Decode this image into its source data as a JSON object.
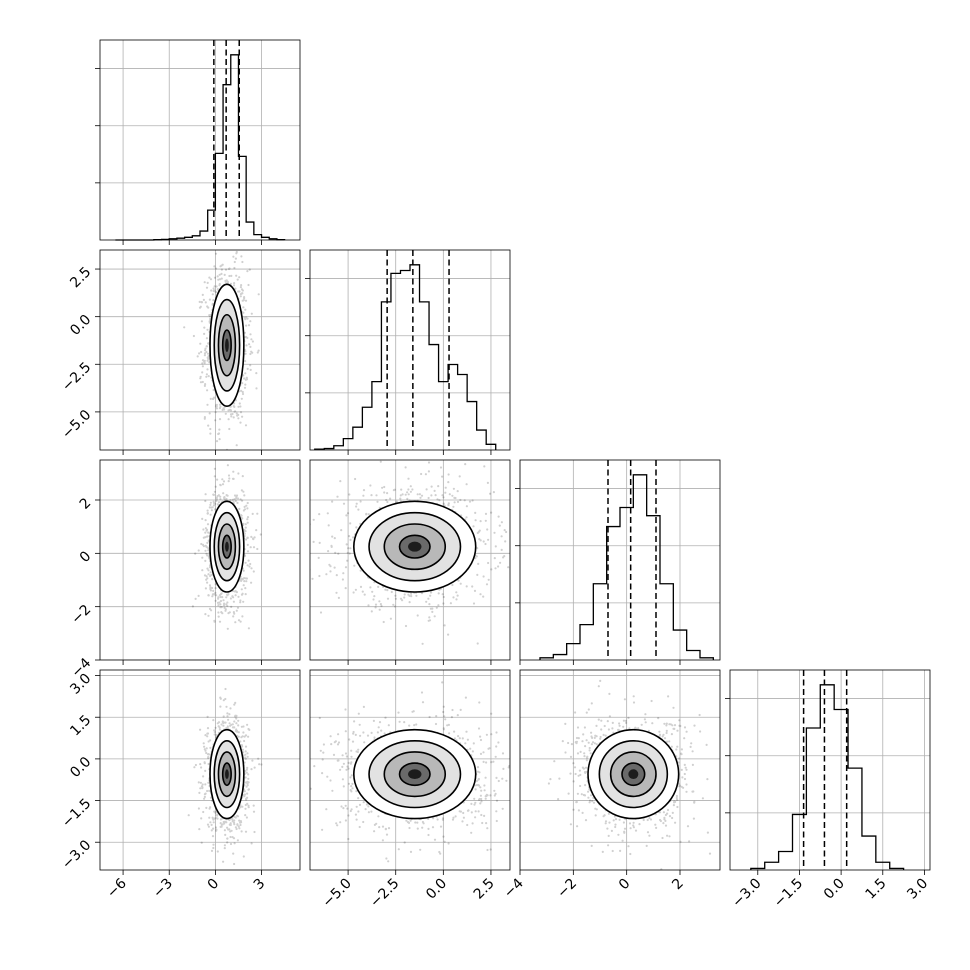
{
  "chart_data": {
    "type": "corner",
    "n_params": 4,
    "quantiles": [
      0.16,
      0.5,
      0.84
    ],
    "grid": true,
    "params": [
      {
        "index": 0,
        "range": [
          -7.5,
          5.5
        ],
        "ticks": [
          -6,
          -3,
          0,
          3
        ],
        "tick_labels": [
          "−6",
          "−3",
          "0",
          "3"
        ],
        "mean": 0.75,
        "sd": 0.65,
        "quantile_values": [
          -0.1,
          0.7,
          1.55
        ],
        "hist": {
          "edges": [
            -6.5,
            -6.0,
            -5.5,
            -5.0,
            -4.5,
            -4.0,
            -3.5,
            -3.0,
            -2.5,
            -2.0,
            -1.5,
            -1.0,
            -0.5,
            0.0,
            0.5,
            1.0,
            1.5,
            2.0,
            2.5,
            3.0,
            3.5,
            4.0,
            4.5
          ],
          "counts": [
            0,
            0,
            0,
            0,
            0,
            1,
            2,
            4,
            6,
            9,
            14,
            30,
            100,
            290,
            520,
            620,
            280,
            60,
            18,
            9,
            4,
            1
          ]
        }
      },
      {
        "index": 1,
        "range": [
          -7.0,
          3.5
        ],
        "ticks": [
          -5.0,
          -2.5,
          0.0,
          2.5
        ],
        "tick_labels": [
          "−5.0",
          "−2.5",
          "0.0",
          "2.5"
        ],
        "mean": -1.5,
        "sd": 1.6,
        "quantile_values": [
          -2.95,
          -1.6,
          0.3
        ],
        "hist": {
          "edges": [
            -6.75,
            -6.25,
            -5.75,
            -5.25,
            -4.75,
            -4.25,
            -3.75,
            -3.25,
            -2.75,
            -2.25,
            -1.75,
            -1.25,
            -0.75,
            -0.25,
            0.25,
            0.75,
            1.25,
            1.75,
            2.25,
            2.75
          ],
          "counts": [
            3,
            5,
            15,
            40,
            80,
            150,
            240,
            520,
            620,
            630,
            650,
            520,
            370,
            240,
            300,
            265,
            170,
            70,
            20
          ]
        }
      },
      {
        "index": 2,
        "range": [
          -4.0,
          3.5
        ],
        "ticks": [
          -4,
          -2,
          0,
          2
        ],
        "tick_labels": [
          "−4",
          "−2",
          "0",
          "2"
        ],
        "mean": 0.25,
        "sd": 0.85,
        "quantile_values": [
          -0.7,
          0.15,
          1.1
        ],
        "hist": {
          "edges": [
            -3.25,
            -2.75,
            -2.25,
            -1.75,
            -1.25,
            -0.75,
            -0.25,
            0.25,
            0.75,
            1.25,
            1.75,
            2.25,
            2.75,
            3.25
          ],
          "counts": [
            8,
            20,
            60,
            130,
            280,
            490,
            560,
            680,
            530,
            280,
            110,
            35,
            8
          ]
        }
      },
      {
        "index": 3,
        "range": [
          -4.0,
          3.2
        ],
        "ticks": [
          -3.0,
          -1.5,
          0.0,
          1.5,
          3.0
        ],
        "tick_labels": [
          "−3.0",
          "−1.5",
          "0.0",
          "1.5",
          "3.0"
        ],
        "mean": -0.55,
        "sd": 0.8,
        "quantile_values": [
          -1.35,
          -0.6,
          0.2
        ],
        "hist": {
          "edges": [
            -3.25,
            -2.75,
            -2.25,
            -1.75,
            -1.25,
            -0.75,
            -0.25,
            0.25,
            0.75,
            1.25,
            1.75,
            2.25
          ],
          "counts": [
            5,
            25,
            60,
            180,
            460,
            600,
            520,
            330,
            110,
            25,
            5
          ]
        }
      }
    ],
    "pairs": [
      {
        "x": 0,
        "y": 1,
        "x_spread": 0.55,
        "y_spread": 1.6
      },
      {
        "x": 0,
        "y": 2,
        "x_spread": 0.55,
        "y_spread": 0.85
      },
      {
        "x": 1,
        "y": 2,
        "x_spread": 1.6,
        "y_spread": 0.85
      },
      {
        "x": 0,
        "y": 3,
        "x_spread": 0.55,
        "y_spread": 0.8
      },
      {
        "x": 1,
        "y": 3,
        "x_spread": 1.6,
        "y_spread": 0.8
      },
      {
        "x": 2,
        "y": 3,
        "x_spread": 0.85,
        "y_spread": 0.8
      }
    ]
  }
}
